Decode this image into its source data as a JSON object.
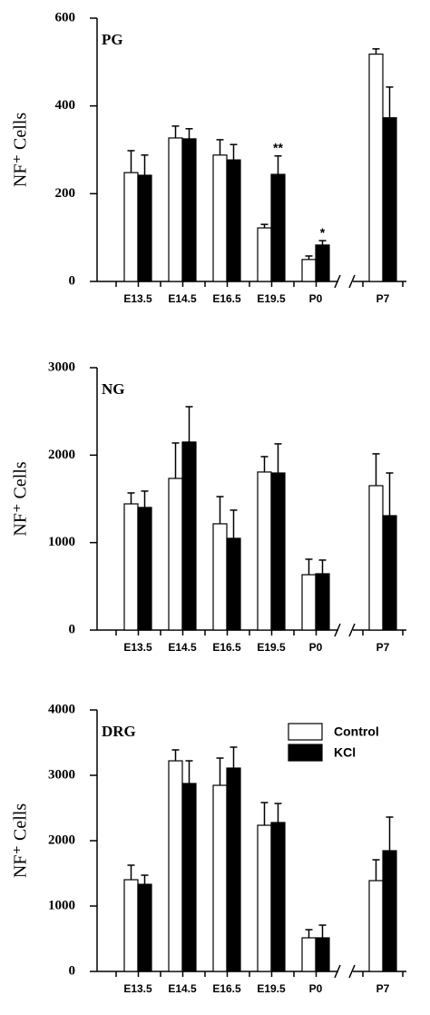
{
  "chart_data": [
    {
      "type": "bar",
      "title": "PG",
      "ylabel": "NF⁺ Cells",
      "categories": [
        "E13.5",
        "E14.5",
        "E16.5",
        "E19.5",
        "P0",
        "P7"
      ],
      "series": [
        {
          "color": "#ffffff",
          "values": [
            248,
            327,
            288,
            122,
            50,
            518
          ],
          "errors": [
            50,
            27,
            35,
            8,
            8,
            12
          ]
        },
        {
          "color": "#000000",
          "values": [
            242,
            325,
            277,
            244,
            83,
            373
          ],
          "errors": [
            46,
            23,
            35,
            42,
            10,
            70
          ],
          "significance": [
            null,
            null,
            null,
            "**",
            "*",
            null
          ]
        }
      ],
      "ylim": [
        0,
        600
      ],
      "yticks": [
        0,
        200,
        400,
        600
      ]
    },
    {
      "type": "bar",
      "title": "NG",
      "ylabel": "NF⁺ Cells",
      "categories": [
        "E13.5",
        "E14.5",
        "E16.5",
        "E19.5",
        "P0",
        "P7"
      ],
      "series": [
        {
          "color": "#ffffff",
          "values": [
            1443,
            1734,
            1215,
            1807,
            633,
            1651
          ],
          "errors": [
            125,
            405,
            311,
            176,
            177,
            364
          ]
        },
        {
          "color": "#000000",
          "values": [
            1402,
            2150,
            1049,
            1796,
            644,
            1308
          ],
          "errors": [
            187,
            404,
            322,
            333,
            156,
            488
          ]
        }
      ],
      "ylim": [
        0,
        3000
      ],
      "yticks": [
        0,
        1000,
        2000,
        3000
      ]
    },
    {
      "type": "bar",
      "title": "DRG",
      "ylabel": "NF⁺ Cells",
      "categories": [
        "E13.5",
        "E14.5",
        "E16.5",
        "E19.5",
        "P0",
        "P7"
      ],
      "series": [
        {
          "name": "Control",
          "color": "#ffffff",
          "values": [
            1403,
            3222,
            2847,
            2236,
            514,
            1389
          ],
          "errors": [
            222,
            167,
            417,
            347,
            125,
            319
          ]
        },
        {
          "name": "KCl",
          "color": "#000000",
          "values": [
            1333,
            2875,
            3111,
            2278,
            514,
            1847
          ],
          "errors": [
            139,
            347,
            320,
            291,
            194,
            514
          ]
        }
      ],
      "ylim": [
        0,
        4000
      ],
      "yticks": [
        0,
        1000,
        2000,
        3000,
        4000
      ],
      "legend": "upper right"
    }
  ]
}
